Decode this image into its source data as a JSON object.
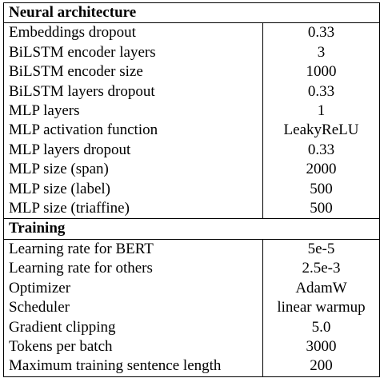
{
  "sections": [
    {
      "title": "Neural architecture",
      "rows": [
        {
          "label": "Embeddings dropout",
          "value": "0.33"
        },
        {
          "label": "BiLSTM encoder layers",
          "value": "3"
        },
        {
          "label": "BiLSTM encoder size",
          "value": "1000"
        },
        {
          "label": "BiLSTM layers dropout",
          "value": "0.33"
        },
        {
          "label": "MLP layers",
          "value": "1"
        },
        {
          "label": "MLP activation function",
          "value": "LeakyReLU"
        },
        {
          "label": "MLP layers dropout",
          "value": "0.33"
        },
        {
          "label": "MLP size (span)",
          "value": "2000"
        },
        {
          "label": "MLP size (label)",
          "value": "500"
        },
        {
          "label": "MLP size (triaffine)",
          "value": "500"
        }
      ]
    },
    {
      "title": "Training",
      "rows": [
        {
          "label": "Learning rate for BERT",
          "value": "5e-5"
        },
        {
          "label": "Learning rate for others",
          "value": "2.5e-3"
        },
        {
          "label": "Optimizer",
          "value": "AdamW"
        },
        {
          "label": "Scheduler",
          "value": "linear warmup"
        },
        {
          "label": "Gradient clipping",
          "value": "5.0"
        },
        {
          "label": "Tokens per batch",
          "value": "3000"
        },
        {
          "label": "Maximum training sentence length",
          "value": "200"
        }
      ]
    }
  ]
}
